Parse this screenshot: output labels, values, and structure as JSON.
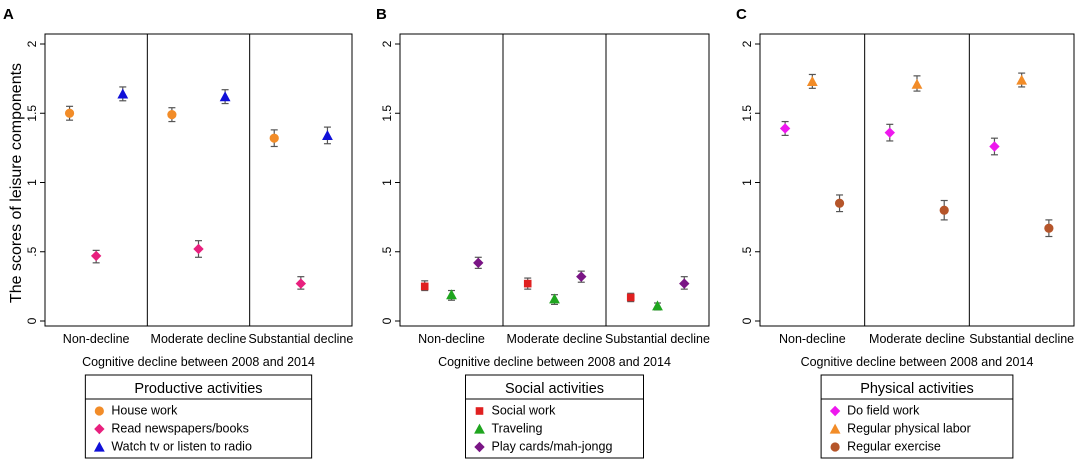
{
  "ylabel": "The scores of leisure components",
  "xlabel": "Cognitive decline between 2008 and 2014",
  "categories": [
    "Non-decline",
    "Moderate decline",
    "Substantial decline"
  ],
  "y_ticks": [
    {
      "value": 0,
      "label": "0"
    },
    {
      "value": 0.5,
      "label": ".5"
    },
    {
      "value": 1,
      "label": "1"
    },
    {
      "value": 1.5,
      "label": "1.5"
    },
    {
      "value": 2,
      "label": "2"
    }
  ],
  "chart_data": [
    {
      "type": "scatter",
      "panel": "A",
      "ylim": [
        0,
        2
      ],
      "legend_title": "Productive activities",
      "series": [
        {
          "name": "House work",
          "marker": "circle",
          "color": "#F28C28",
          "values": [
            1.5,
            1.49,
            1.32
          ],
          "err_low": [
            1.45,
            1.44,
            1.26
          ],
          "err_high": [
            1.55,
            1.54,
            1.38
          ]
        },
        {
          "name": "Read newspapers/books",
          "marker": "diamond",
          "color": "#E8207E",
          "values": [
            0.47,
            0.52,
            0.27
          ],
          "err_low": [
            0.42,
            0.46,
            0.23
          ],
          "err_high": [
            0.51,
            0.58,
            0.32
          ]
        },
        {
          "name": "Watch tv or listen to radio",
          "marker": "triangle",
          "color": "#1010D8",
          "values": [
            1.64,
            1.62,
            1.34
          ],
          "err_low": [
            1.59,
            1.57,
            1.28
          ],
          "err_high": [
            1.69,
            1.67,
            1.4
          ]
        }
      ]
    },
    {
      "type": "scatter",
      "panel": "B",
      "ylim": [
        0,
        2
      ],
      "legend_title": "Social activities",
      "series": [
        {
          "name": "Social work",
          "marker": "square",
          "color": "#E02020",
          "values": [
            0.25,
            0.27,
            0.17
          ],
          "err_low": [
            0.22,
            0.23,
            0.14
          ],
          "err_high": [
            0.29,
            0.31,
            0.2
          ]
        },
        {
          "name": "Traveling",
          "marker": "triangle",
          "color": "#1FA51F",
          "values": [
            0.19,
            0.16,
            0.11
          ],
          "err_low": [
            0.15,
            0.12,
            0.08
          ],
          "err_high": [
            0.22,
            0.19,
            0.13
          ]
        },
        {
          "name": "Play cards/mah-jongg",
          "marker": "diamond",
          "color": "#7A1585",
          "values": [
            0.42,
            0.32,
            0.27
          ],
          "err_low": [
            0.38,
            0.28,
            0.23
          ],
          "err_high": [
            0.46,
            0.36,
            0.32
          ]
        }
      ]
    },
    {
      "type": "scatter",
      "panel": "C",
      "ylim": [
        0,
        2
      ],
      "legend_title": "Physical activities",
      "series": [
        {
          "name": "Do field work",
          "marker": "diamond",
          "color": "#EE18EE",
          "values": [
            1.39,
            1.36,
            1.26
          ],
          "err_low": [
            1.34,
            1.3,
            1.2
          ],
          "err_high": [
            1.44,
            1.42,
            1.32
          ]
        },
        {
          "name": "Regular physical labor",
          "marker": "triangle",
          "color": "#F28C28",
          "values": [
            1.73,
            1.71,
            1.74
          ],
          "err_low": [
            1.68,
            1.66,
            1.69
          ],
          "err_high": [
            1.78,
            1.77,
            1.79
          ]
        },
        {
          "name": "Regular exercise",
          "marker": "circle",
          "color": "#B5552A",
          "values": [
            0.85,
            0.8,
            0.67
          ],
          "err_low": [
            0.79,
            0.73,
            0.61
          ],
          "err_high": [
            0.91,
            0.87,
            0.73
          ]
        }
      ]
    }
  ]
}
